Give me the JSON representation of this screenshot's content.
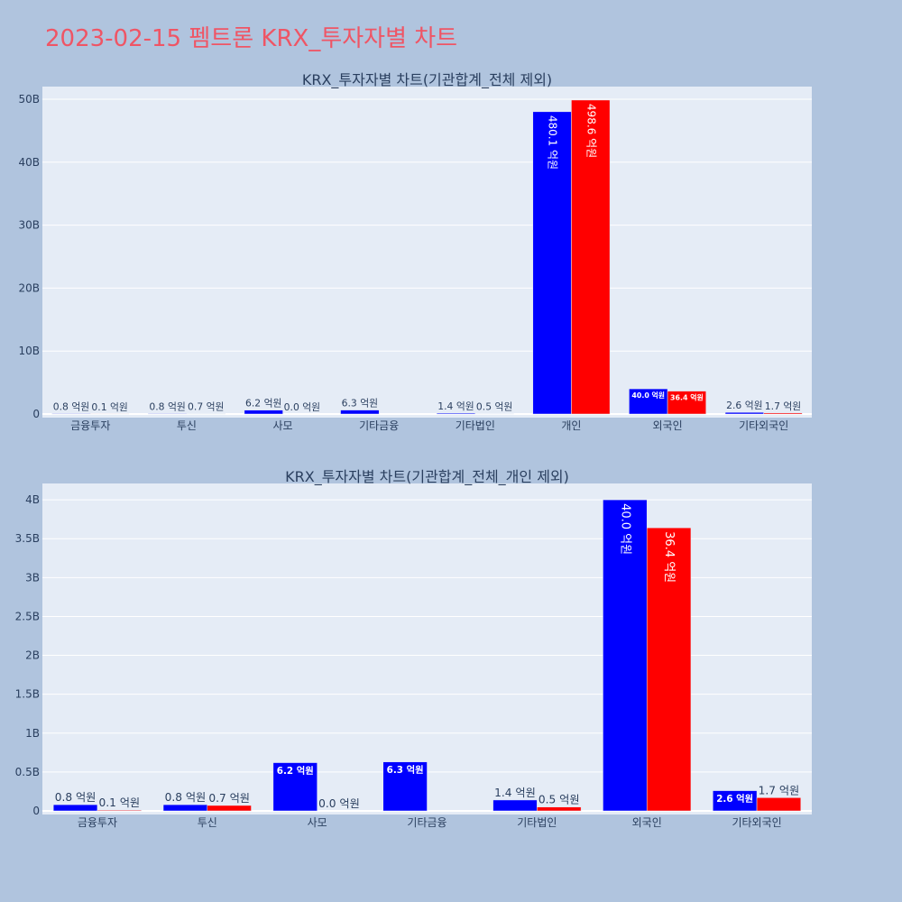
{
  "page_title": "2023-02-15 펨트론 KRX_투자자별 차트",
  "colors": {
    "buy": "#0000ff",
    "sell": "#ff0000",
    "plot_bg": "#e5ecf6",
    "page_bg": "#b0c4de",
    "title": "#ef5565"
  },
  "chart_data": [
    {
      "type": "bar",
      "title": "KRX_투자자별 차트(기관합계_전체 제외)",
      "categories": [
        "금융투자",
        "투신",
        "사모",
        "기타금융",
        "기타법인",
        "개인",
        "외국인",
        "기타외국인"
      ],
      "ylim": [
        0,
        52000000000
      ],
      "yticks": [
        0,
        10000000000,
        20000000000,
        30000000000,
        40000000000,
        50000000000
      ],
      "ytick_labels": [
        "0",
        "10B",
        "20B",
        "30B",
        "40B",
        "50B"
      ],
      "grid": true,
      "series": [
        {
          "color": "#0000ff",
          "values": [
            80000000,
            80000000,
            620000000,
            630000000,
            140000000,
            48010000000,
            4000000000,
            260000000
          ],
          "labels": [
            "0.8 억원",
            "0.8 억원",
            "6.2 억원",
            "6.3 억원",
            "1.4 억원",
            "480.1 억원",
            "40.0 억원",
            "2.6 억원"
          ]
        },
        {
          "color": "#ff0000",
          "values": [
            10000000,
            70000000,
            0,
            null,
            50000000,
            49860000000,
            3640000000,
            170000000
          ],
          "labels": [
            "0.1 억원",
            "0.7 억원",
            "0.0 억원",
            null,
            "0.5 억원",
            "498.6 억원",
            "36.4 억원",
            "1.7 억원"
          ]
        }
      ]
    },
    {
      "type": "bar",
      "title": "KRX_투자자별 차트(기관합계_전체_개인 제외)",
      "categories": [
        "금융투자",
        "투신",
        "사모",
        "기타금융",
        "기타법인",
        "외국인",
        "기타외국인"
      ],
      "ylim": [
        0,
        4210000000
      ],
      "yticks": [
        0,
        500000000,
        1000000000,
        1500000000,
        2000000000,
        2500000000,
        3000000000,
        3500000000,
        4000000000
      ],
      "ytick_labels": [
        "0",
        "0.5B",
        "1B",
        "1.5B",
        "2B",
        "2.5B",
        "3B",
        "3.5B",
        "4B"
      ],
      "grid": true,
      "series": [
        {
          "color": "#0000ff",
          "values": [
            80000000,
            80000000,
            620000000,
            630000000,
            140000000,
            4000000000,
            260000000
          ],
          "labels": [
            "0.8 억원",
            "0.8 억원",
            "6.2 억원",
            "6.3 억원",
            "1.4 억원",
            "40.0 억원",
            "2.6 억원"
          ]
        },
        {
          "color": "#ff0000",
          "values": [
            10000000,
            70000000,
            0,
            null,
            50000000,
            3640000000,
            170000000
          ],
          "labels": [
            "0.1 억원",
            "0.7 억원",
            "0.0 억원",
            null,
            "0.5 억원",
            "36.4 억원",
            "1.7 억원"
          ]
        }
      ]
    }
  ]
}
